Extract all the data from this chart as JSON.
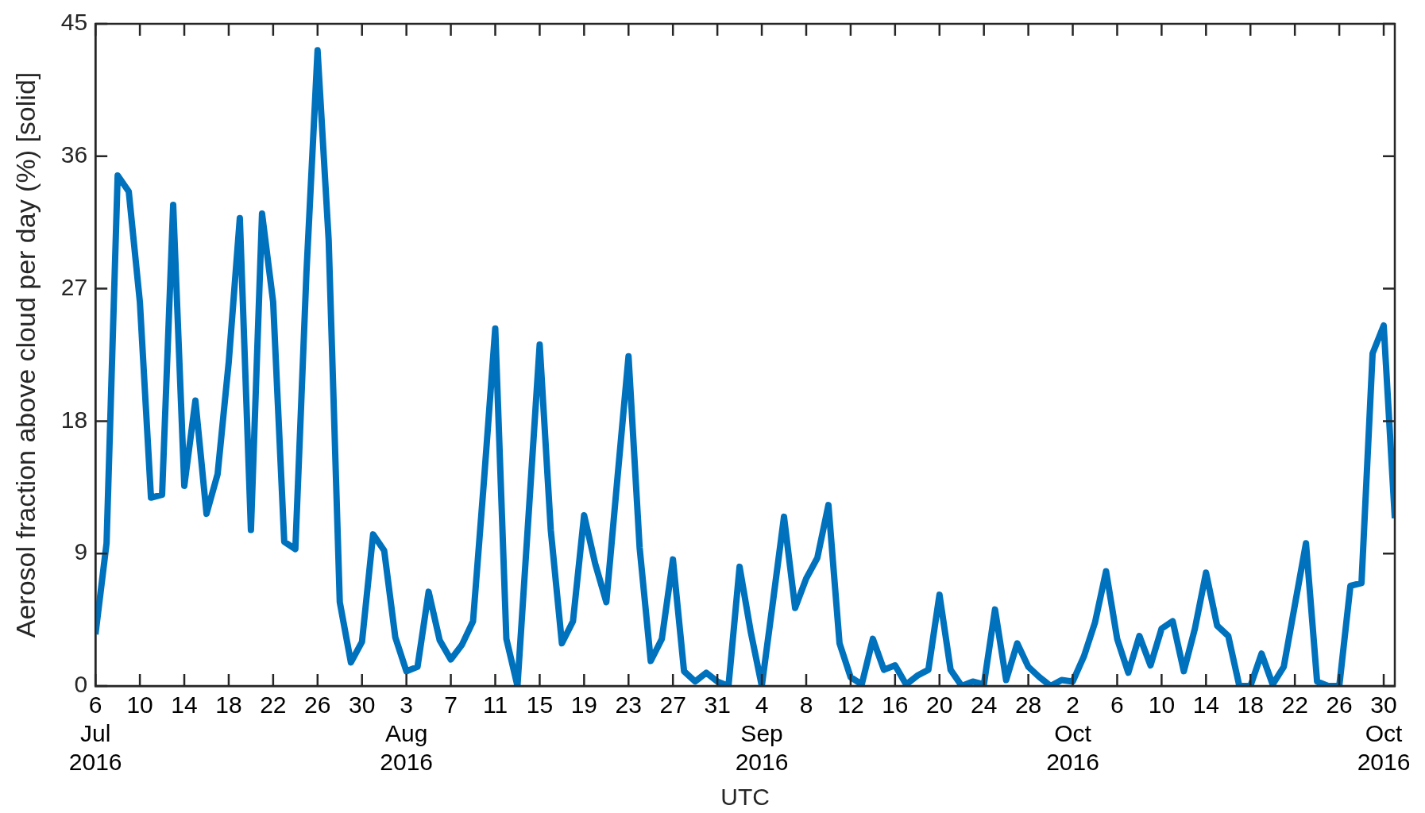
{
  "chart_data": {
    "type": "line",
    "xlabel": "UTC",
    "ylabel": "Aerosol fraction above cloud per day (%) [solid]",
    "x": [
      "2016-07-06",
      "2016-07-07",
      "2016-07-08",
      "2016-07-09",
      "2016-07-10",
      "2016-07-11",
      "2016-07-12",
      "2016-07-13",
      "2016-07-14",
      "2016-07-15",
      "2016-07-16",
      "2016-07-17",
      "2016-07-18",
      "2016-07-19",
      "2016-07-20",
      "2016-07-21",
      "2016-07-22",
      "2016-07-23",
      "2016-07-24",
      "2016-07-25",
      "2016-07-26",
      "2016-07-27",
      "2016-07-28",
      "2016-07-29",
      "2016-07-30",
      "2016-07-31",
      "2016-08-01",
      "2016-08-02",
      "2016-08-03",
      "2016-08-04",
      "2016-08-05",
      "2016-08-06",
      "2016-08-07",
      "2016-08-08",
      "2016-08-09",
      "2016-08-10",
      "2016-08-11",
      "2016-08-12",
      "2016-08-13",
      "2016-08-14",
      "2016-08-15",
      "2016-08-16",
      "2016-08-17",
      "2016-08-18",
      "2016-08-19",
      "2016-08-20",
      "2016-08-21",
      "2016-08-22",
      "2016-08-23",
      "2016-08-24",
      "2016-08-25",
      "2016-08-26",
      "2016-08-27",
      "2016-08-28",
      "2016-08-29",
      "2016-08-30",
      "2016-08-31",
      "2016-09-01",
      "2016-09-02",
      "2016-09-03",
      "2016-09-04",
      "2016-09-05",
      "2016-09-06",
      "2016-09-07",
      "2016-09-08",
      "2016-09-09",
      "2016-09-10",
      "2016-09-11",
      "2016-09-12",
      "2016-09-13",
      "2016-09-14",
      "2016-09-15",
      "2016-09-16",
      "2016-09-17",
      "2016-09-18",
      "2016-09-19",
      "2016-09-20",
      "2016-09-21",
      "2016-09-22",
      "2016-09-23",
      "2016-09-24",
      "2016-09-25",
      "2016-09-26",
      "2016-09-27",
      "2016-09-28",
      "2016-09-29",
      "2016-09-30",
      "2016-10-01",
      "2016-10-02",
      "2016-10-03",
      "2016-10-04",
      "2016-10-05",
      "2016-10-06",
      "2016-10-07",
      "2016-10-08",
      "2016-10-09",
      "2016-10-10",
      "2016-10-11",
      "2016-10-12",
      "2016-10-13",
      "2016-10-14",
      "2016-10-15",
      "2016-10-16",
      "2016-10-17",
      "2016-10-18",
      "2016-10-19",
      "2016-10-20",
      "2016-10-21",
      "2016-10-22",
      "2016-10-23",
      "2016-10-24",
      "2016-10-25",
      "2016-10-26",
      "2016-10-27",
      "2016-10-28",
      "2016-10-29",
      "2016-10-30",
      "2016-10-31"
    ],
    "series": [
      {
        "color": "#0072bd",
        "values": [
          3.5,
          9.7,
          34.7,
          33.6,
          26.1,
          12.8,
          13.0,
          32.7,
          13.6,
          19.4,
          11.7,
          14.4,
          22.0,
          31.8,
          10.6,
          32.1,
          26.1,
          9.8,
          9.3,
          28.1,
          43.2,
          30.3,
          5.7,
          1.6,
          3.0,
          10.3,
          9.2,
          3.3,
          1.0,
          1.3,
          6.4,
          3.1,
          1.8,
          2.8,
          4.4,
          14.1,
          24.3,
          3.2,
          0,
          11.6,
          23.2,
          10.6,
          2.9,
          4.4,
          11.6,
          8.3,
          5.7,
          14.1,
          22.4,
          9.4,
          1.7,
          3.2,
          8.6,
          1.0,
          0.3,
          0.9,
          0.3,
          0,
          8.1,
          3.7,
          0,
          5.7,
          11.5,
          5.3,
          7.3,
          8.7,
          12.3,
          2.9,
          0.6,
          0.1,
          3.2,
          1.1,
          1.4,
          0.1,
          0.7,
          1.1,
          6.2,
          1.1,
          0,
          0.3,
          0.1,
          5.2,
          0.4,
          2.9,
          1.3,
          0.6,
          0,
          0.4,
          0.3,
          2.0,
          4.3,
          7.8,
          3.2,
          0.9,
          3.4,
          1.4,
          3.9,
          4.4,
          1.0,
          3.9,
          7.7,
          4.1,
          3.4,
          0,
          0,
          2.2,
          0.1,
          1.3,
          5.5,
          9.7,
          0.3,
          0,
          0,
          6.8,
          7.0,
          22.6,
          24.5,
          11.4
        ]
      }
    ],
    "xlim": [
      "2016-07-06",
      "2016-10-31"
    ],
    "xticks": [
      {
        "value": "2016-07-06",
        "label": "6\nJul\n2016"
      },
      {
        "value": "2016-07-10",
        "label": "10"
      },
      {
        "value": "2016-07-14",
        "label": "14"
      },
      {
        "value": "2016-07-18",
        "label": "18"
      },
      {
        "value": "2016-07-22",
        "label": "22"
      },
      {
        "value": "2016-07-26",
        "label": "26"
      },
      {
        "value": "2016-07-30",
        "label": "30"
      },
      {
        "value": "2016-08-03",
        "label": "3\nAug\n2016"
      },
      {
        "value": "2016-08-07",
        "label": "7"
      },
      {
        "value": "2016-08-11",
        "label": "11"
      },
      {
        "value": "2016-08-15",
        "label": "15"
      },
      {
        "value": "2016-08-19",
        "label": "19"
      },
      {
        "value": "2016-08-23",
        "label": "23"
      },
      {
        "value": "2016-08-27",
        "label": "27"
      },
      {
        "value": "2016-08-31",
        "label": "31"
      },
      {
        "value": "2016-09-04",
        "label": "4\nSep\n2016"
      },
      {
        "value": "2016-09-08",
        "label": "8"
      },
      {
        "value": "2016-09-12",
        "label": "12"
      },
      {
        "value": "2016-09-16",
        "label": "16"
      },
      {
        "value": "2016-09-20",
        "label": "20"
      },
      {
        "value": "2016-09-24",
        "label": "24"
      },
      {
        "value": "2016-09-28",
        "label": "28"
      },
      {
        "value": "2016-10-02",
        "label": "2\nOct\n2016"
      },
      {
        "value": "2016-10-06",
        "label": "6"
      },
      {
        "value": "2016-10-10",
        "label": "10"
      },
      {
        "value": "2016-10-14",
        "label": "14"
      },
      {
        "value": "2016-10-18",
        "label": "18"
      },
      {
        "value": "2016-10-22",
        "label": "22"
      },
      {
        "value": "2016-10-26",
        "label": "26"
      },
      {
        "value": "2016-10-30",
        "label": "30\nOct\n2016"
      }
    ],
    "ylim": [
      0,
      45
    ],
    "yticks": [
      0,
      9,
      18,
      27,
      36,
      45
    ],
    "grid": false,
    "legend": false,
    "marker": "none",
    "line_style": "solid"
  }
}
